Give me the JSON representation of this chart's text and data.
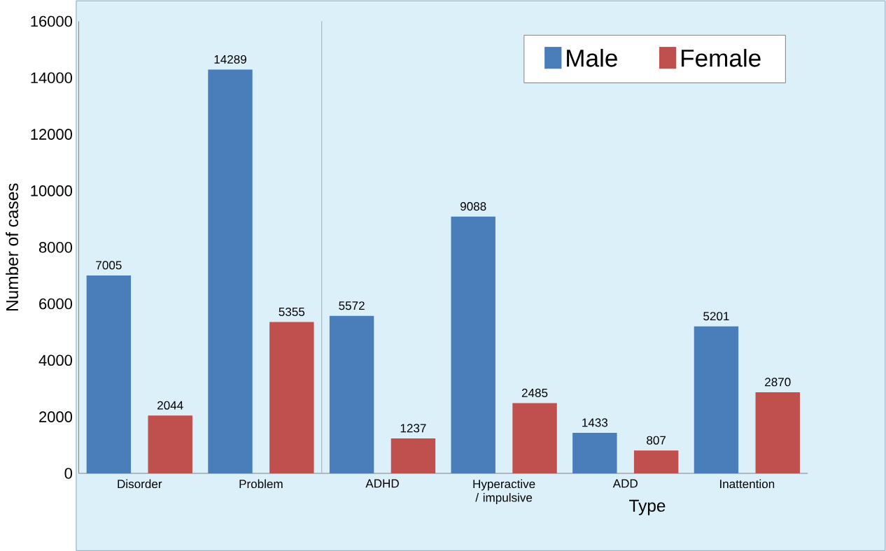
{
  "chart_data": {
    "type": "bar",
    "xlabel": "Type",
    "ylabel": "Number of cases",
    "categories": [
      "Disorder",
      "Problem",
      "ADHD",
      "Hyperactive / impulsive",
      "ADD",
      "Inattention"
    ],
    "series": [
      {
        "name": "Male",
        "color": "#4a7ebb",
        "values": [
          7005,
          14289,
          5572,
          9088,
          1433,
          5201
        ]
      },
      {
        "name": "Female",
        "color": "#c0504d",
        "values": [
          2044,
          5355,
          1237,
          2485,
          807,
          2870
        ]
      }
    ],
    "ylim": [
      0,
      16000
    ],
    "yticks": [
      0,
      2000,
      4000,
      6000,
      8000,
      10000,
      12000,
      14000,
      16000
    ],
    "data_labels": true,
    "legend": "top right",
    "grid": false
  }
}
